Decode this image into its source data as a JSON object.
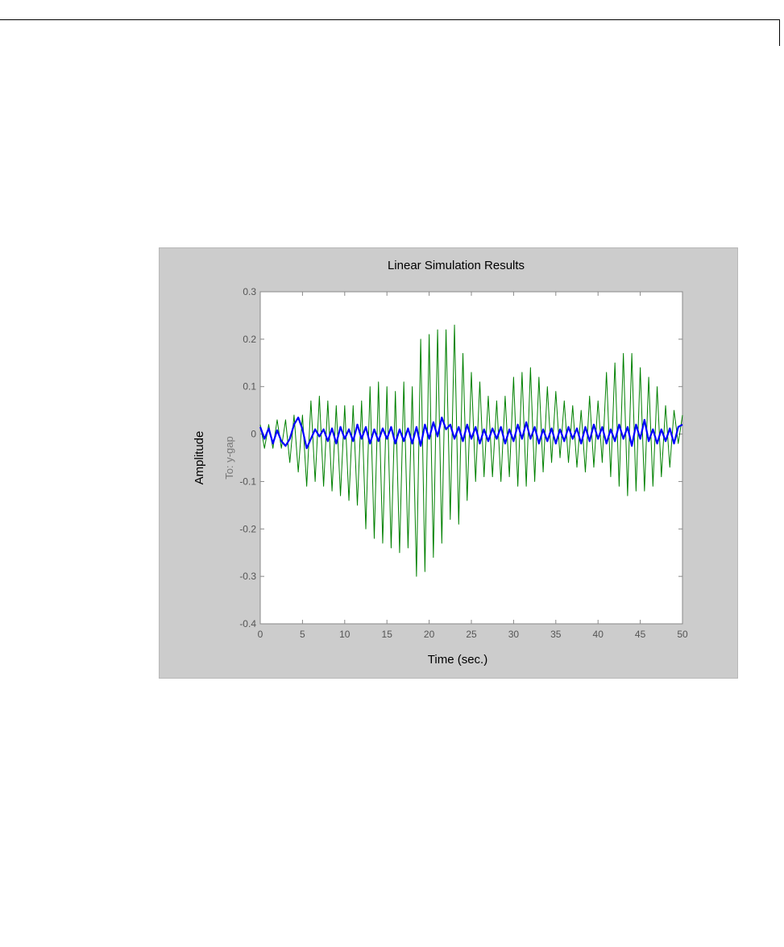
{
  "chart_data": {
    "type": "line",
    "title": "Linear Simulation Results",
    "xlabel": "Time (sec.)",
    "ylabel": "Amplitude",
    "output_label": "To: y-gap",
    "xlim": [
      0,
      50
    ],
    "ylim": [
      -0.4,
      0.3
    ],
    "x_ticks": [
      0,
      5,
      10,
      15,
      20,
      25,
      30,
      35,
      40,
      45,
      50
    ],
    "y_ticks": [
      -0.4,
      -0.3,
      -0.2,
      -0.1,
      0,
      0.1,
      0.2,
      0.3
    ],
    "grid": false,
    "legend": "none",
    "colors": {
      "panel_background": "#cccccc",
      "plot_background": "#ffffff",
      "series_green": "#008000",
      "series_blue": "#0000ff"
    },
    "series": [
      {
        "color": "#008000",
        "sampling": "oscillation peaks (maxima and minima) read from the plot",
        "x": [
          0,
          0.5,
          1.0,
          1.5,
          2.0,
          2.5,
          3.0,
          3.5,
          4.0,
          4.5,
          5.0,
          5.5,
          6.0,
          6.5,
          7.0,
          7.5,
          8.0,
          8.5,
          9.0,
          9.5,
          10.0,
          10.5,
          11.0,
          11.5,
          12.0,
          12.5,
          13.0,
          13.5,
          14.0,
          14.5,
          15.0,
          15.5,
          16.0,
          16.5,
          17.0,
          17.5,
          18.0,
          18.5,
          19.0,
          19.5,
          20.0,
          20.5,
          21.0,
          21.5,
          22.0,
          22.5,
          23.0,
          23.5,
          24.0,
          24.5,
          25.0,
          25.5,
          26.0,
          26.5,
          27.0,
          27.5,
          28.0,
          28.5,
          29.0,
          29.5,
          30.0,
          30.5,
          31.0,
          31.5,
          32.0,
          32.5,
          33.0,
          33.5,
          34.0,
          34.5,
          35.0,
          35.5,
          36.0,
          36.5,
          37.0,
          37.5,
          38.0,
          38.5,
          39.0,
          39.5,
          40.0,
          40.5,
          41.0,
          41.5,
          42.0,
          42.5,
          43.0,
          43.5,
          44.0,
          44.5,
          45.0,
          45.5,
          46.0,
          46.5,
          47.0,
          47.5,
          48.0,
          48.5,
          49.0,
          49.5,
          50.0
        ],
        "y": [
          0.02,
          -0.03,
          0.02,
          -0.03,
          0.03,
          -0.03,
          0.03,
          -0.06,
          0.04,
          -0.08,
          0.04,
          -0.11,
          0.07,
          -0.1,
          0.08,
          -0.11,
          0.07,
          -0.12,
          0.06,
          -0.13,
          0.06,
          -0.14,
          0.06,
          -0.15,
          0.07,
          -0.2,
          0.1,
          -0.22,
          0.11,
          -0.23,
          0.1,
          -0.24,
          0.09,
          -0.25,
          0.11,
          -0.24,
          0.1,
          -0.3,
          0.2,
          -0.29,
          0.21,
          -0.26,
          0.22,
          -0.23,
          0.22,
          -0.18,
          0.23,
          -0.19,
          0.17,
          -0.14,
          0.13,
          -0.1,
          0.11,
          -0.09,
          0.08,
          -0.09,
          0.07,
          -0.1,
          0.08,
          -0.09,
          0.12,
          -0.11,
          0.13,
          -0.11,
          0.14,
          -0.1,
          0.12,
          -0.08,
          0.1,
          -0.06,
          0.09,
          -0.05,
          0.07,
          -0.06,
          0.06,
          -0.07,
          0.05,
          -0.08,
          0.08,
          -0.07,
          0.07,
          -0.06,
          0.13,
          -0.09,
          0.15,
          -0.11,
          0.17,
          -0.13,
          0.17,
          -0.12,
          0.14,
          -0.12,
          0.12,
          -0.11,
          0.1,
          -0.09,
          0.06,
          -0.07,
          0.05,
          -0.02,
          0.04
        ]
      },
      {
        "color": "#0000ff",
        "sampling": "approximate local extrema read from the plot",
        "x": [
          0,
          0.5,
          1.0,
          1.5,
          2.0,
          2.5,
          3.0,
          3.5,
          4.0,
          4.5,
          5.0,
          5.5,
          6.0,
          6.5,
          7.0,
          7.5,
          8.0,
          8.5,
          9.0,
          9.5,
          10.0,
          10.5,
          11.0,
          11.5,
          12.0,
          12.5,
          13.0,
          13.5,
          14.0,
          14.5,
          15.0,
          15.5,
          16.0,
          16.5,
          17.0,
          17.5,
          18.0,
          18.5,
          19.0,
          19.5,
          20.0,
          20.5,
          21.0,
          21.5,
          22.0,
          22.5,
          23.0,
          23.5,
          24.0,
          24.5,
          25.0,
          25.5,
          26.0,
          26.5,
          27.0,
          27.5,
          28.0,
          28.5,
          29.0,
          29.5,
          30.0,
          30.5,
          31.0,
          31.5,
          32.0,
          32.5,
          33.0,
          33.5,
          34.0,
          34.5,
          35.0,
          35.5,
          36.0,
          36.5,
          37.0,
          37.5,
          38.0,
          38.5,
          39.0,
          39.5,
          40.0,
          40.5,
          41.0,
          41.5,
          42.0,
          42.5,
          43.0,
          43.5,
          44.0,
          44.5,
          45.0,
          45.5,
          46.0,
          46.5,
          47.0,
          47.5,
          48.0,
          48.5,
          49.0,
          49.5,
          50.0
        ],
        "y": [
          0.015,
          -0.01,
          0.012,
          -0.02,
          0.008,
          -0.015,
          -0.025,
          -0.01,
          0.02,
          0.035,
          0.01,
          -0.03,
          -0.01,
          0.01,
          -0.005,
          0.01,
          -0.015,
          0.012,
          -0.02,
          0.015,
          -0.01,
          0.01,
          -0.015,
          0.02,
          -0.01,
          0.015,
          -0.02,
          0.01,
          -0.015,
          0.012,
          -0.01,
          0.015,
          -0.02,
          0.01,
          -0.015,
          0.012,
          -0.02,
          0.015,
          -0.025,
          0.02,
          -0.01,
          0.025,
          -0.005,
          0.035,
          0.01,
          0.02,
          -0.01,
          0.015,
          -0.015,
          0.02,
          -0.01,
          0.015,
          -0.02,
          0.01,
          -0.015,
          0.012,
          -0.01,
          0.015,
          -0.02,
          0.01,
          -0.015,
          0.02,
          -0.01,
          0.025,
          -0.01,
          0.015,
          -0.02,
          0.01,
          -0.015,
          0.012,
          -0.02,
          0.01,
          -0.015,
          0.015,
          -0.01,
          0.012,
          -0.02,
          0.015,
          -0.015,
          0.02,
          -0.01,
          0.015,
          -0.02,
          0.01,
          -0.015,
          0.02,
          -0.01,
          0.015,
          -0.025,
          0.02,
          -0.01,
          0.03,
          -0.015,
          0.01,
          -0.02,
          0.01,
          -0.015,
          0.012,
          -0.02,
          0.015,
          0.02
        ]
      }
    ]
  }
}
